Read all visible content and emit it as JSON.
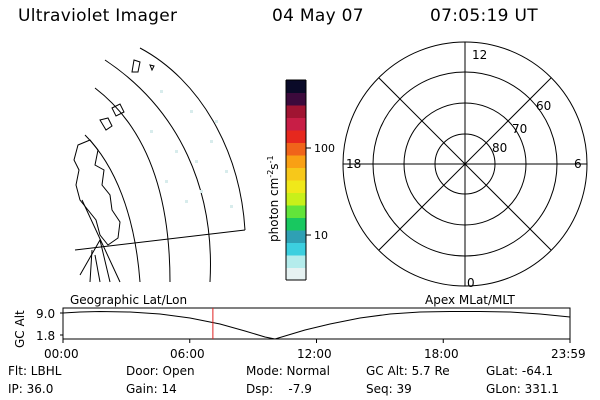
{
  "header": {
    "instrument": "Ultraviolet Imager",
    "date": "04 May 07",
    "time": "07:05:19 UT"
  },
  "colorbar": {
    "label_main": "photon cm",
    "label_exp1": "-2",
    "label_s": "s",
    "label_exp2": "-1",
    "ticks": [
      {
        "value": 100,
        "label": "100"
      },
      {
        "value": 10,
        "label": "10"
      }
    ],
    "colors": [
      "#e6f2f2",
      "#b4ecec",
      "#3ccfdf",
      "#2fa0b4",
      "#18c860",
      "#62e43a",
      "#c8f01a",
      "#f0e81a",
      "#f7c81a",
      "#f9a014",
      "#f0641a",
      "#e6281e",
      "#c81e46",
      "#a01432",
      "#3c0a3c",
      "#0a0a28"
    ]
  },
  "polar_plot": {
    "mlt_labels": [
      "12",
      "18",
      "6",
      "0"
    ],
    "lat_labels": [
      "60",
      "70",
      "80"
    ]
  },
  "geo_labels": {
    "left": "Geographic Lat/Lon",
    "right": "Apex MLat/MLT"
  },
  "orbit_plot": {
    "ylabel": "GC Alt",
    "yticks": [
      "9.0",
      "1.8"
    ],
    "xticks": [
      "00:00",
      "06:00",
      "12:00",
      "18:00",
      "23:59"
    ],
    "marker_time_hours": 7.09
  },
  "info": {
    "filter": "Flt: LBHL",
    "ip": "IP: 36.0",
    "door": "Door: Open",
    "gain": "Gain: 14",
    "mode": "Mode: Normal",
    "dsp": "Dsp:    -7.9",
    "gc_alt": "GC Alt: 5.7 Re",
    "seq": "Seq: 39",
    "glat": "GLat: -64.1",
    "glon": "GLon: 331.1"
  },
  "colors": {
    "marker": "#e02020",
    "lines": "#000000"
  }
}
